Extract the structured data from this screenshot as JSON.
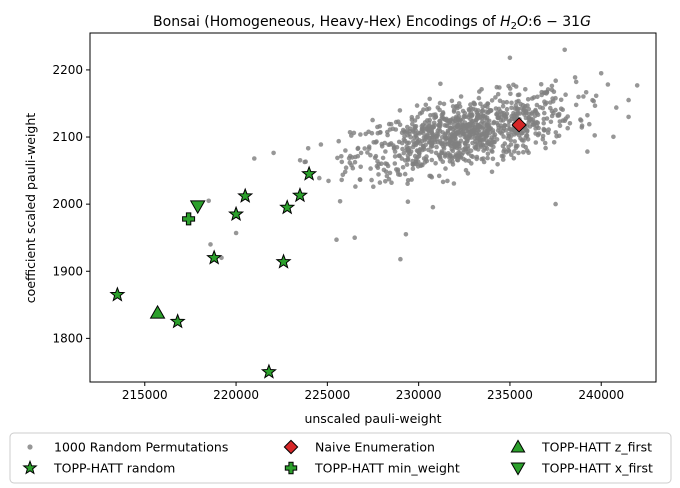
{
  "chart_data": {
    "type": "scatter",
    "title_plain": "Bonsai (Homogeneous, Heavy-Hex) Encodings of ",
    "title_math_base": "H",
    "title_math_sub": "2",
    "title_math_rest": "O",
    "title_rest": ":6 − 31",
    "title_math_g": "G",
    "xlabel": "unscaled pauli-weight",
    "ylabel": "coefficient scaled pauli-weight",
    "xlim": [
      212000,
      243000
    ],
    "ylim": [
      1735,
      2255
    ],
    "xticks": [
      215000,
      220000,
      225000,
      230000,
      235000,
      240000
    ],
    "yticks": [
      1800,
      1900,
      2000,
      2100,
      2200
    ],
    "grid": false,
    "legend_placement": "bottom-outside",
    "random_cloud": {
      "name": "1000 Random Permutations",
      "count": 1000,
      "color": "#808080",
      "center": [
        232500,
        2105
      ],
      "notable_points": [
        [
          218500,
          2005
        ],
        [
          218600,
          1940
        ],
        [
          219200,
          1920
        ],
        [
          220000,
          1957
        ],
        [
          221000,
          2068
        ],
        [
          225500,
          1947
        ],
        [
          226500,
          1950
        ],
        [
          229000,
          1918
        ],
        [
          229300,
          1955
        ],
        [
          237500,
          2000
        ],
        [
          241500,
          2155
        ],
        [
          241500,
          2130
        ],
        [
          240000,
          2195
        ],
        [
          238000,
          2230
        ],
        [
          235000,
          2218
        ]
      ]
    },
    "series": [
      {
        "name": "TOPP-HATT random",
        "marker": "star",
        "color": "#2ca02c",
        "points": [
          [
            213500,
            1865
          ],
          [
            216800,
            1825
          ],
          [
            218800,
            1920
          ],
          [
            220000,
            1985
          ],
          [
            220500,
            2012
          ],
          [
            221800,
            1750
          ],
          [
            222600,
            1914
          ],
          [
            222800,
            1995
          ],
          [
            223500,
            2013
          ],
          [
            224000,
            2045
          ]
        ]
      },
      {
        "name": "Naive Enumeration",
        "marker": "diamond",
        "color": "#d62728",
        "points": [
          [
            235500,
            2118
          ]
        ]
      },
      {
        "name": "TOPP-HATT min_weight",
        "marker": "plus",
        "color": "#2ca02c",
        "points": [
          [
            217400,
            1978
          ]
        ]
      },
      {
        "name": "TOPP-HATT z_first",
        "marker": "triangle-up",
        "color": "#2ca02c",
        "points": [
          [
            215700,
            1838
          ]
        ]
      },
      {
        "name": "TOPP-HATT x_first",
        "marker": "triangle-down",
        "color": "#2ca02c",
        "points": [
          [
            217900,
            1997
          ]
        ]
      }
    ]
  }
}
